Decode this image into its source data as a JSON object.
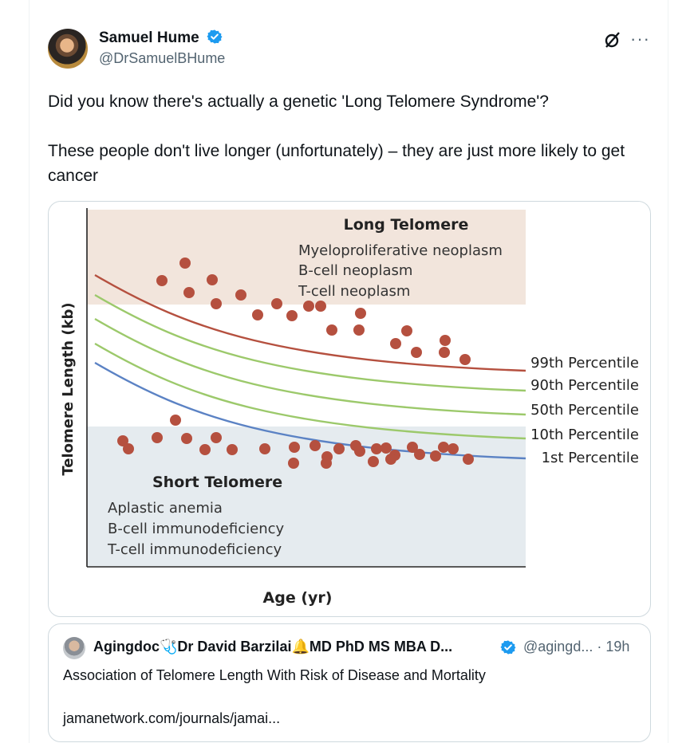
{
  "author": {
    "name": "Samuel Hume",
    "handle": "@DrSamuelBHume"
  },
  "tweet": {
    "text": "Did you know there's actually a genetic 'Long Telomere Syndrome'?\n\nThese people don't live longer (unfortunately) – they are just more likely to get cancer"
  },
  "icons": {
    "grok": "grok-icon",
    "more": "more-icon",
    "verified": "verified-badge-icon"
  },
  "colors": {
    "accent": "#1d9bf0",
    "dot": "#b5503f",
    "long_region": "#f2e5dc",
    "short_region": "#e5ebef",
    "p99": "#b5503f",
    "mid": "#9cc96b",
    "p1": "#5b82c4"
  },
  "chart_data": {
    "type": "scatter",
    "title": "",
    "xlabel": "Age (yr)",
    "ylabel": "Telomere Length (kb)",
    "grid": false,
    "regions": [
      {
        "name": "Long Telomere",
        "items": [
          "Myeloproliferative neoplasm",
          "B-cell neoplasm",
          "T-cell neoplasm"
        ]
      },
      {
        "name": "Short Telomere",
        "items": [
          "Aplastic anemia",
          "B-cell immunodeficiency",
          "T-cell immunodeficiency"
        ]
      }
    ],
    "series": [
      {
        "name": "99th Percentile"
      },
      {
        "name": "90th Percentile"
      },
      {
        "name": "50th Percentile"
      },
      {
        "name": "10th Percentile"
      },
      {
        "name": "1st Percentile"
      }
    ]
  },
  "quote": {
    "name": "Agingdoc🩺Dr David Barzilai🔔MD PhD MS MBA D...",
    "handle": "@agingd... · 19h",
    "text": "Association of Telomere Length With Risk of Disease and Mortality",
    "link": "jamanetwork.com/journals/jamai..."
  }
}
